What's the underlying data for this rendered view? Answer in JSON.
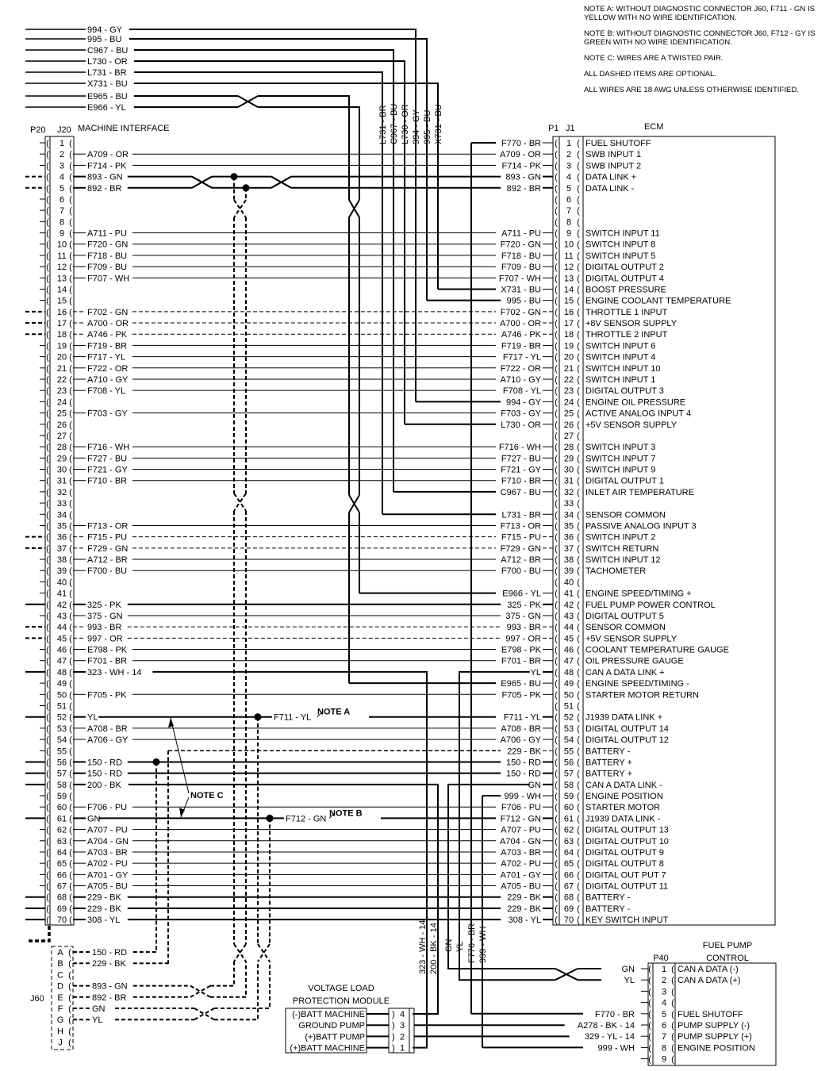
{
  "notes": [
    "NOTE A: WITHOUT DIAGNOSTIC CONNECTOR J60, F711 - GN IS YELLOW WITH NO WIRE IDENTIFICATION.",
    "NOTE B: WITHOUT DIAGNOSTIC CONNECTOR J60, F712 - GY IS GREEN WITH NO WIRE IDENTIFICATION.",
    "NOTE C: WIRES ARE A TWISTED PAIR.",
    "ALL DASHED ITEMS ARE OPTIONAL.",
    "ALL WIRES ARE 18 AWG UNLESS OTHERWISE IDENTIFIED."
  ],
  "top_wires": [
    {
      "label": "994 - GY",
      "vertical_label": "994 - GY",
      "to_pin": 24
    },
    {
      "label": "995 - BU",
      "vertical_label": "995 - BU",
      "to_pin": 15
    },
    {
      "label": "C967 - BU",
      "vertical_label": "C967 - BU",
      "to_pin": 32
    },
    {
      "label": "L730 - OR",
      "vertical_label": "L730 - OR",
      "to_pin": 26
    },
    {
      "label": "L731 - BR",
      "vertical_label": "L731 - BR",
      "to_pin": 34
    },
    {
      "label": "X731 - BU",
      "vertical_label": "X731 - BU",
      "to_pin": 14
    },
    {
      "label": "E965 - BU",
      "vertical_label": "",
      "to_pin": 49
    },
    {
      "label": "E966 - YL",
      "vertical_label": "",
      "to_pin": 41
    }
  ],
  "machine_interface": {
    "p_label": "P20",
    "j_label": "J20",
    "title": "MACHINE INTERFACE"
  },
  "ecm": {
    "title": "ECM",
    "p_label": "P1",
    "j_label": "J1"
  },
  "pins": [
    {
      "pin": 1,
      "left": "",
      "right": "F770 - BR",
      "function": "FUEL SHUTOFF"
    },
    {
      "pin": 2,
      "left": "A709 - OR",
      "right": "A709 - OR",
      "function": "SWB INPUT 1"
    },
    {
      "pin": 3,
      "left": "F714 - PK",
      "right": "F714 - PK",
      "function": "SWB INPUT 2"
    },
    {
      "pin": 4,
      "left": "893 - GN",
      "right": "893 - GN",
      "function": "DATA LINK +",
      "ext": true,
      "optional_stub": true
    },
    {
      "pin": 5,
      "left": "892 - BR",
      "right": "892 - BR",
      "function": "DATA LINK -",
      "ext": true,
      "optional_stub": true
    },
    {
      "pin": 6,
      "left": "",
      "right": "",
      "function": ""
    },
    {
      "pin": 7,
      "left": "",
      "right": "",
      "function": ""
    },
    {
      "pin": 8,
      "left": "",
      "right": "",
      "function": ""
    },
    {
      "pin": 9,
      "left": "A711 - PU",
      "right": "A711 - PU",
      "function": "SWITCH INPUT 11"
    },
    {
      "pin": 10,
      "left": "F720 - GN",
      "right": "F720 - GN",
      "function": "SWITCH INPUT 8"
    },
    {
      "pin": 11,
      "left": "F718 - BU",
      "right": "F718 - BU",
      "function": "SWITCH INPUT 5"
    },
    {
      "pin": 12,
      "left": "F709 - BU",
      "right": "F709 - BU",
      "function": "DIGITAL OUTPUT 2"
    },
    {
      "pin": 13,
      "left": "F707 - WH",
      "right": "F707 - WH",
      "function": "DIGITAL OUTPUT 4"
    },
    {
      "pin": 14,
      "left": "",
      "right": "X731 - BU",
      "function": "BOOST PRESSURE"
    },
    {
      "pin": 15,
      "left": "",
      "right": "995 - BU",
      "function": "ENGINE COOLANT TEMPERATURE"
    },
    {
      "pin": 16,
      "left": "F702 - GN",
      "right": "F702 - GN",
      "function": "THROTTLE 1 INPUT",
      "ext": true,
      "optional": true
    },
    {
      "pin": 17,
      "left": "A700 - OR",
      "right": "A700 - OR",
      "function": "+8V SENSOR SUPPLY",
      "ext": true,
      "optional": true
    },
    {
      "pin": 18,
      "left": "A746 - PK",
      "right": "A746 - PK",
      "function": "THROTTLE 2 INPUT",
      "ext": true,
      "optional": true
    },
    {
      "pin": 19,
      "left": "F719 - BR",
      "right": "F719 - BR",
      "function": "SWITCH INPUT 6"
    },
    {
      "pin": 20,
      "left": "F717 - YL",
      "right": "F717 - YL",
      "function": "SWITCH INPUT 4"
    },
    {
      "pin": 21,
      "left": "F722 - OR",
      "right": "F722 - OR",
      "function": "SWITCH INPUT 10"
    },
    {
      "pin": 22,
      "left": "A710 - GY",
      "right": "A710 - GY",
      "function": "SWITCH INPUT 1"
    },
    {
      "pin": 23,
      "left": "F708 - YL",
      "right": "F708 - YL",
      "function": "DIGITAL OUTPUT 3"
    },
    {
      "pin": 24,
      "left": "",
      "right": "994 - GY",
      "function": "ENGINE OIL PRESSURE"
    },
    {
      "pin": 25,
      "left": "F703 - GY",
      "right": "F703 - GY",
      "function": "ACTIVE ANALOG INPUT 4"
    },
    {
      "pin": 26,
      "left": "",
      "right": "L730 - OR",
      "function": "+5V SENSOR SUPPLY"
    },
    {
      "pin": 27,
      "left": "",
      "right": "",
      "function": ""
    },
    {
      "pin": 28,
      "left": "F716 - WH",
      "right": "F716 - WH",
      "function": "SWITCH INPUT 3"
    },
    {
      "pin": 29,
      "left": "F727 - BU",
      "right": "F727 - BU",
      "function": "SWITCH INPUT 7"
    },
    {
      "pin": 30,
      "left": "F721 - GY",
      "right": "F721 - GY",
      "function": "SWITCH INPUT 9"
    },
    {
      "pin": 31,
      "left": "F710 - BR",
      "right": "F710 - BR",
      "function": "DIGITAL OUTPUT 1"
    },
    {
      "pin": 32,
      "left": "",
      "right": "C967 - BU",
      "function": "INLET AIR TEMPERATURE"
    },
    {
      "pin": 33,
      "left": "",
      "right": "",
      "function": ""
    },
    {
      "pin": 34,
      "left": "",
      "right": "L731 - BR",
      "function": "SENSOR COMMON"
    },
    {
      "pin": 35,
      "left": "F713 - OR",
      "right": "F713 - OR",
      "function": "PASSIVE ANALOG INPUT 3"
    },
    {
      "pin": 36,
      "left": "F715 - PU",
      "right": "F715 - PU",
      "function": "SWITCH INPUT 2",
      "ext": true,
      "optional": true
    },
    {
      "pin": 37,
      "left": "F729 - GN",
      "right": "F729 - GN",
      "function": "SWITCH RETURN",
      "ext": true,
      "optional": true
    },
    {
      "pin": 38,
      "left": "A712 - BR",
      "right": "A712 - BR",
      "function": "SWITCH INPUT 12"
    },
    {
      "pin": 39,
      "left": "F700 - BU",
      "right": "F700 - BU",
      "function": "TACHOMETER"
    },
    {
      "pin": 40,
      "left": "",
      "right": "",
      "function": ""
    },
    {
      "pin": 41,
      "left": "",
      "right": "E966 - YL",
      "function": "ENGINE SPEED/TIMING +"
    },
    {
      "pin": 42,
      "left": "325 - PK",
      "right": "325 - PK",
      "function": "FUEL PUMP POWER CONTROL",
      "ext": true
    },
    {
      "pin": 43,
      "left": "375 - GN",
      "right": "375 - GN",
      "function": "DIGITAL OUTPUT 5"
    },
    {
      "pin": 44,
      "left": "993 - BR",
      "right": "993 - BR",
      "function": "SENSOR COMMON",
      "ext": true,
      "optional": true
    },
    {
      "pin": 45,
      "left": "997 - OR",
      "right": "997 - OR",
      "function": "+5V SENSOR SUPPLY",
      "ext": true,
      "optional": true
    },
    {
      "pin": 46,
      "left": "E798 - PK",
      "right": "E798 - PK",
      "function": "COOLANT TEMPERATURE GAUGE"
    },
    {
      "pin": 47,
      "left": "F701 - BR",
      "right": "F701 - BR",
      "function": "OIL PRESSURE GAUGE"
    },
    {
      "pin": 48,
      "left": "323 - WH - 14",
      "right": "YL",
      "function": "CAN A DATA LINK +",
      "ext": true
    },
    {
      "pin": 49,
      "left": "",
      "right": "E965 - BU",
      "function": "ENGINE SPEED/TIMING -"
    },
    {
      "pin": 50,
      "left": "F705 - PK",
      "right": "F705 - PK",
      "function": "STARTER MOTOR RETURN"
    },
    {
      "pin": 51,
      "left": "",
      "right": "",
      "function": ""
    },
    {
      "pin": 52,
      "left": "YL",
      "right": "F711 - YL",
      "function": "J1939 DATA LINK +",
      "ext": true
    },
    {
      "pin": 53,
      "left": "A708 - BR",
      "right": "A708 - BR",
      "function": "DIGITAL OUTPUT 14"
    },
    {
      "pin": 54,
      "left": "A706 - GY",
      "right": "A706 - GY",
      "function": "DIGITAL OUTPUT 12"
    },
    {
      "pin": 55,
      "left": "",
      "right": "229 - BK",
      "function": "BATTERY -",
      "optional": true
    },
    {
      "pin": 56,
      "left": "150 - RD",
      "right": "150 - RD",
      "function": "BATTERY +",
      "ext": true
    },
    {
      "pin": 57,
      "left": "150 - RD",
      "right": "150 - RD",
      "function": "BATTERY +",
      "ext": true
    },
    {
      "pin": 58,
      "left": "200 - BK",
      "right": "GN",
      "function": "CAN A DATA LINK -",
      "ext": true
    },
    {
      "pin": 59,
      "left": "",
      "right": "999 - WH",
      "function": "ENGINE POSITION"
    },
    {
      "pin": 60,
      "left": "F706 - PU",
      "right": "F706 - PU",
      "function": "STARTER MOTOR"
    },
    {
      "pin": 61,
      "left": "GN",
      "right": "F712 - GN",
      "function": "J1939 DATA LINK -",
      "ext": true
    },
    {
      "pin": 62,
      "left": "A707 - PU",
      "right": "A707 - PU",
      "function": "DIGITAL OUTPUT 13"
    },
    {
      "pin": 63,
      "left": "A704 - GN",
      "right": "A704 - GN",
      "function": "DIGITAL OUTPUT 10"
    },
    {
      "pin": 64,
      "left": "A703 - BR",
      "right": "A703 - BR",
      "function": "DIGITAL OUTPUT 9"
    },
    {
      "pin": 65,
      "left": "A702 - PU",
      "right": "A702 - PU",
      "function": "DIGITAL OUTPUT 8"
    },
    {
      "pin": 66,
      "left": "A701 - GY",
      "right": "A701 - GY",
      "function": "DIGITAL OUT PUT 7"
    },
    {
      "pin": 67,
      "left": "A705 - BU",
      "right": "A705 - BU",
      "function": "DIGITAL OUTPUT 11"
    },
    {
      "pin": 68,
      "left": "229 - BK",
      "right": "229 - BK",
      "function": "BATTERY -",
      "ext": true
    },
    {
      "pin": 69,
      "left": "229 - BK",
      "right": "229 - BK",
      "function": "BATTERY -",
      "ext": true
    },
    {
      "pin": 70,
      "left": "308 - YL",
      "right": "308 - YL",
      "function": "KEY SWITCH INPUT",
      "ext": true
    }
  ],
  "annotations": {
    "f711": "F711 - YL",
    "note_a": "NOTE A",
    "f712": "F712 - GN",
    "note_b": "NOTE B",
    "note_c": "NOTE C"
  },
  "j60": {
    "label": "J60",
    "pins": [
      {
        "pin": "A",
        "label": "150 - RD"
      },
      {
        "pin": "B",
        "label": "229 - BK"
      },
      {
        "pin": "C",
        "label": ""
      },
      {
        "pin": "D",
        "label": "893 - GN"
      },
      {
        "pin": "E",
        "label": "892 - BR"
      },
      {
        "pin": "F",
        "label": "GN"
      },
      {
        "pin": "G",
        "label": "YL"
      },
      {
        "pin": "H",
        "label": ""
      },
      {
        "pin": "J",
        "label": ""
      }
    ]
  },
  "bottom_vertical_labels": {
    "w323": "323 - WH - 14",
    "w200": "200 - BK - 14",
    "gn": "GN",
    "yl": "YL",
    "f770": "F770 - BR",
    "w999": "999 - WH"
  },
  "vlpm": {
    "title_1": "VOLTAGE LOAD",
    "title_2": "PROTECTION MODULE",
    "pins": [
      {
        "pin": "4",
        "function": "(-)BATT MACHINE"
      },
      {
        "pin": "3",
        "function": "GROUND PUMP"
      },
      {
        "pin": "2",
        "function": "(+)BATT PUMP"
      },
      {
        "pin": "1",
        "function": "(+)BATT MACHINE"
      }
    ]
  },
  "p40": {
    "label": "P40",
    "title_1": "FUEL PUMP",
    "title_2": "CONTROL",
    "pins": [
      {
        "pin": "1",
        "wire": "GN",
        "function": "CAN A DATA (-)"
      },
      {
        "pin": "2",
        "wire": "YL",
        "function": "CAN A DATA (+)"
      },
      {
        "pin": "3",
        "wire": "",
        "function": ""
      },
      {
        "pin": "4",
        "wire": "",
        "function": ""
      },
      {
        "pin": "5",
        "wire": "F770 - BR",
        "function": "FUEL SHUTOFF"
      },
      {
        "pin": "6",
        "wire": "A278 - BK - 14",
        "function": "PUMP SUPPLY (-)"
      },
      {
        "pin": "7",
        "wire": "329 - YL - 14",
        "function": "PUMP SUPPLY (+)"
      },
      {
        "pin": "8",
        "wire": "999 - WH",
        "function": "ENGINE POSITION"
      },
      {
        "pin": "9",
        "wire": "",
        "function": ""
      }
    ]
  }
}
